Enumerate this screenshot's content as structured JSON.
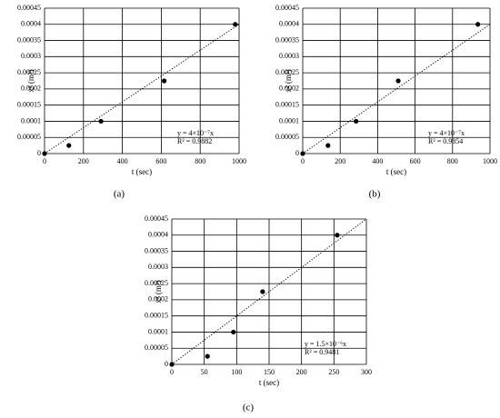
{
  "chart_data": [
    {
      "type": "scatter",
      "panel": "(a)",
      "x_label": "t (sec)",
      "y_label": "x² (m²)",
      "x": [
        0,
        125,
        290,
        615,
        980
      ],
      "values": [
        0,
        2.5e-05,
        0.0001,
        0.000225,
        0.0004
      ],
      "color": "#000000",
      "xlim": [
        0,
        1000
      ],
      "xticks": [
        0,
        200,
        400,
        600,
        800,
        1000
      ],
      "ylim": [
        0,
        0.00045
      ],
      "yticks": [
        0,
        5e-05,
        0.0001,
        0.00015,
        0.0002,
        0.00025,
        0.0003,
        0.00035,
        0.0004,
        0.00045
      ],
      "grid": true,
      "trendline_slope": 4e-07,
      "annotations": [
        "y = 4×10⁻⁷x",
        "R² = 0.9882"
      ]
    },
    {
      "type": "scatter",
      "panel": "(b)",
      "x_label": "t (sec)",
      "y_label": "x² (m²)",
      "x": [
        0,
        135,
        285,
        510,
        935
      ],
      "values": [
        0,
        2.5e-05,
        0.0001,
        0.000225,
        0.0004
      ],
      "color": "#000000",
      "xlim": [
        0,
        1000
      ],
      "xticks": [
        0,
        200,
        400,
        600,
        800,
        1000
      ],
      "ylim": [
        0,
        0.00045
      ],
      "yticks": [
        0,
        5e-05,
        0.0001,
        0.00015,
        0.0002,
        0.00025,
        0.0003,
        0.00035,
        0.0004,
        0.00045
      ],
      "grid": true,
      "trendline_slope": 4e-07,
      "annotations": [
        "y = 4×10⁻⁷x",
        "R² = 0.9854"
      ]
    },
    {
      "type": "scatter",
      "panel": "(c)",
      "x_label": "t (sec)",
      "y_label": "x² (m²)",
      "x": [
        0,
        55,
        95,
        140,
        255
      ],
      "values": [
        0,
        2.5e-05,
        0.0001,
        0.000225,
        0.0004
      ],
      "color": "#000000",
      "xlim": [
        0,
        300
      ],
      "xticks": [
        0,
        50,
        100,
        150,
        200,
        250,
        300
      ],
      "ylim": [
        0,
        0.00045
      ],
      "yticks": [
        0,
        5e-05,
        0.0001,
        0.00015,
        0.0002,
        0.00025,
        0.0003,
        0.00035,
        0.0004,
        0.00045
      ],
      "grid": true,
      "trendline_slope": 1.5e-06,
      "annotations": [
        "y = 1.5×10⁻⁶x",
        "R² = 0.9481"
      ]
    }
  ]
}
